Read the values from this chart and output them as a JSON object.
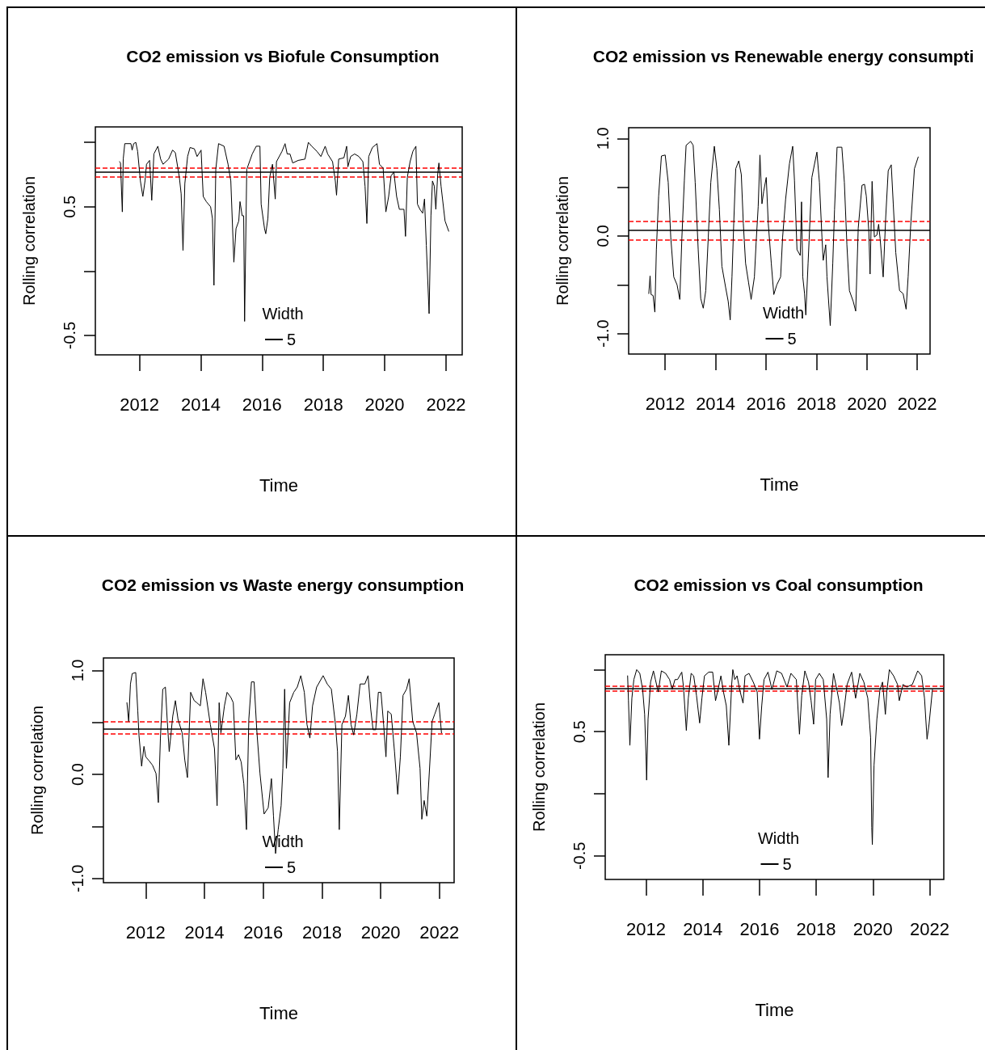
{
  "chart_data": [
    {
      "type": "line",
      "title": "CO2 emission vs Biofule Consumption",
      "xlabel": "Time",
      "ylabel": "Rolling correlation",
      "legend_title": "Width",
      "legend": "bottom",
      "xlim": [
        2010.56,
        2022.53
      ],
      "xticks": [
        2012,
        2014,
        2016,
        2018,
        2020,
        2022
      ],
      "ylim": [
        -0.65,
        1.12
      ],
      "yticks": [
        {
          "value": -0.5,
          "label": "-0.5"
        },
        {
          "value": 0,
          "label": null
        },
        {
          "value": 0.5,
          "label": "0.5"
        },
        {
          "value": 1,
          "label": null
        }
      ],
      "ref_lines": [
        {
          "axis": "y",
          "value": 0.77,
          "color": "#000000",
          "line_style": "solid"
        },
        {
          "axis": "y",
          "value": 0.8,
          "color": "#ff0000",
          "line_style": "dashed"
        },
        {
          "axis": "y",
          "value": 0.73,
          "color": "#ff0000",
          "line_style": "dashed"
        }
      ],
      "series": [
        {
          "name": "5",
          "color": "#000000",
          "x": [
            2011.35,
            2011.38,
            2011.44,
            2011.47,
            2011.52,
            2011.72,
            2011.76,
            2011.81,
            2011.88,
            2011.94,
            2012.03,
            2012.11,
            2012.18,
            2012.23,
            2012.33,
            2012.4,
            2012.47,
            2012.6,
            2012.69,
            2012.77,
            2012.95,
            2013.08,
            2013.17,
            2013.3,
            2013.36,
            2013.42,
            2013.48,
            2013.57,
            2013.65,
            2013.79,
            2013.88,
            2014.01,
            2014.08,
            2014.18,
            2014.32,
            2014.38,
            2014.43,
            2014.49,
            2014.58,
            2014.76,
            2014.89,
            2014.98,
            2015.08,
            2015.15,
            2015.24,
            2015.28,
            2015.35,
            2015.4,
            2015.43,
            2015.5,
            2015.59,
            2015.68,
            2015.81,
            2015.93,
            2015.97,
            2016.08,
            2016.12,
            2016.19,
            2016.25,
            2016.34,
            2016.43,
            2016.47,
            2016.65,
            2016.75,
            2016.82,
            2016.91,
            2017.0,
            2017.18,
            2017.4,
            2017.51,
            2017.62,
            2017.79,
            2017.92,
            2018.06,
            2018.14,
            2018.3,
            2018.39,
            2018.43,
            2018.5,
            2018.67,
            2018.76,
            2018.8,
            2018.89,
            2019.02,
            2019.16,
            2019.29,
            2019.36,
            2019.42,
            2019.48,
            2019.6,
            2019.75,
            2019.83,
            2019.95,
            2020.04,
            2020.13,
            2020.21,
            2020.3,
            2020.39,
            2020.48,
            2020.63,
            2020.68,
            2020.74,
            2020.83,
            2020.92,
            2021.02,
            2021.07,
            2021.15,
            2021.24,
            2021.3,
            2021.36,
            2021.45,
            2021.51,
            2021.56,
            2021.62,
            2021.67,
            2021.73,
            2021.77,
            2021.84,
            2021.97,
            2022.09
          ],
          "values": [
            0.85,
            0.84,
            0.46,
            0.87,
            0.99,
            0.99,
            0.94,
            0.99,
            1.0,
            0.93,
            0.7,
            0.58,
            0.7,
            0.83,
            0.86,
            0.55,
            0.91,
            0.97,
            0.87,
            0.83,
            0.87,
            0.94,
            0.92,
            0.73,
            0.6,
            0.16,
            0.68,
            0.89,
            0.96,
            0.95,
            0.89,
            0.94,
            0.58,
            0.54,
            0.5,
            0.41,
            -0.11,
            0.79,
            0.99,
            0.97,
            0.83,
            0.7,
            0.07,
            0.33,
            0.39,
            0.54,
            0.43,
            0.43,
            -0.39,
            0.79,
            0.85,
            0.91,
            0.97,
            0.97,
            0.52,
            0.33,
            0.29,
            0.41,
            0.73,
            0.83,
            0.56,
            0.85,
            0.93,
            0.99,
            0.91,
            0.91,
            0.84,
            0.86,
            0.87,
            1.0,
            0.97,
            0.93,
            0.89,
            0.97,
            0.91,
            0.85,
            0.7,
            0.59,
            0.87,
            0.88,
            0.97,
            0.81,
            0.89,
            0.91,
            0.89,
            0.85,
            0.66,
            0.37,
            0.89,
            0.96,
            0.99,
            0.83,
            0.8,
            0.46,
            0.58,
            0.74,
            0.77,
            0.58,
            0.48,
            0.48,
            0.27,
            0.73,
            0.85,
            0.93,
            0.97,
            0.52,
            0.48,
            0.45,
            0.56,
            0.2,
            -0.33,
            0.43,
            0.7,
            0.66,
            0.48,
            0.75,
            0.84,
            0.66,
            0.39,
            0.31
          ]
        }
      ]
    },
    {
      "type": "line",
      "title": "CO2 emission vs Renewable energy consumpti",
      "xlabel": "Time",
      "ylabel": "Rolling correlation",
      "legend_title": "Width",
      "legend": "bottom",
      "xlim": [
        2010.55,
        2022.51
      ],
      "xticks": [
        2012,
        2014,
        2016,
        2018,
        2020,
        2022
      ],
      "ylim": [
        -1.21,
        1.11
      ],
      "yticks": [
        {
          "value": -1,
          "label": "-1.0"
        },
        {
          "value": -0.5,
          "label": null
        },
        {
          "value": 0,
          "label": "0.0"
        },
        {
          "value": 0.5,
          "label": null
        },
        {
          "value": 1,
          "label": "1.0"
        }
      ],
      "ref_lines": [
        {
          "axis": "y",
          "value": 0.06,
          "color": "#000000",
          "line_style": "solid"
        },
        {
          "axis": "y",
          "value": 0.15,
          "color": "#ff0000",
          "line_style": "dashed"
        },
        {
          "axis": "y",
          "value": -0.04,
          "color": "#ff0000",
          "line_style": "dashed"
        }
      ],
      "series": [
        {
          "name": "5",
          "color": "#000000",
          "x": [
            2011.35,
            2011.4,
            2011.44,
            2011.52,
            2011.59,
            2011.65,
            2011.74,
            2011.85,
            2012.0,
            2012.12,
            2012.22,
            2012.34,
            2012.47,
            2012.58,
            2012.66,
            2012.76,
            2012.83,
            2013.01,
            2013.11,
            2013.19,
            2013.31,
            2013.41,
            2013.51,
            2013.61,
            2013.71,
            2013.81,
            2013.95,
            2014.05,
            2014.15,
            2014.25,
            2014.4,
            2014.5,
            2014.58,
            2014.65,
            2014.72,
            2014.8,
            2014.92,
            2015.02,
            2015.1,
            2015.19,
            2015.31,
            2015.41,
            2015.54,
            2015.61,
            2015.69,
            2015.76,
            2015.84,
            2015.91,
            2016.01,
            2016.09,
            2016.21,
            2016.31,
            2016.43,
            2016.58,
            2016.66,
            2016.78,
            2016.93,
            2017.06,
            2017.13,
            2017.23,
            2017.36,
            2017.41,
            2017.46,
            2017.53,
            2017.58,
            2017.67,
            2017.82,
            2018.02,
            2018.12,
            2018.22,
            2018.27,
            2018.37,
            2018.42,
            2018.55,
            2018.65,
            2018.72,
            2018.82,
            2019.01,
            2019.11,
            2019.21,
            2019.31,
            2019.46,
            2019.56,
            2019.66,
            2019.81,
            2019.91,
            2019.98,
            2020.08,
            2020.13,
            2020.21,
            2020.3,
            2020.4,
            2020.47,
            2020.53,
            2020.65,
            2020.75,
            2020.85,
            2020.97,
            2021.05,
            2021.15,
            2021.3,
            2021.44,
            2021.56,
            2021.64,
            2021.74,
            2021.89,
            2022.04
          ],
          "values": [
            -0.59,
            -0.41,
            -0.6,
            -0.61,
            -0.78,
            -0.14,
            0.41,
            0.82,
            0.83,
            0.55,
            -0.01,
            -0.42,
            -0.5,
            -0.65,
            -0.03,
            0.57,
            0.93,
            0.97,
            0.93,
            0.55,
            -0.14,
            -0.64,
            -0.74,
            -0.56,
            -0.01,
            0.55,
            0.92,
            0.69,
            0.27,
            -0.31,
            -0.53,
            -0.67,
            -0.86,
            -0.42,
            0.13,
            0.69,
            0.77,
            0.63,
            0.13,
            -0.28,
            -0.48,
            -0.65,
            -0.42,
            -0.06,
            0.3,
            0.83,
            0.33,
            0.46,
            0.6,
            0.13,
            -0.28,
            -0.6,
            -0.5,
            -0.42,
            -0.01,
            0.38,
            0.74,
            0.92,
            0.57,
            -0.14,
            -0.2,
            0.35,
            -0.42,
            -0.59,
            -0.81,
            -0.28,
            0.6,
            0.86,
            0.55,
            -0.01,
            -0.25,
            -0.09,
            -0.42,
            -0.92,
            -0.28,
            0.27,
            0.91,
            0.91,
            0.55,
            -0.09,
            -0.56,
            -0.67,
            -0.77,
            0.08,
            0.52,
            0.53,
            0.41,
            0.05,
            -0.39,
            0.56,
            -0.01,
            0.01,
            0.12,
            -0.03,
            -0.42,
            0.19,
            0.67,
            0.73,
            0.33,
            -0.17,
            -0.56,
            -0.59,
            -0.75,
            -0.42,
            0.1,
            0.69,
            0.81
          ]
        }
      ]
    },
    {
      "type": "line",
      "title": "CO2 emission vs Waste energy consumption",
      "xlabel": "Time",
      "ylabel": "Rolling correlation",
      "legend_title": "Width",
      "legend": "bottom",
      "xlim": [
        2010.56,
        2022.5
      ],
      "xticks": [
        2012,
        2014,
        2016,
        2018,
        2020,
        2022
      ],
      "ylim": [
        -1.04,
        1.12
      ],
      "yticks": [
        {
          "value": -1,
          "label": "-1.0"
        },
        {
          "value": -0.5,
          "label": null
        },
        {
          "value": 0,
          "label": "0.0"
        },
        {
          "value": 0.5,
          "label": null
        },
        {
          "value": 1,
          "label": "1.0"
        }
      ],
      "ref_lines": [
        {
          "axis": "y",
          "value": 0.44,
          "color": "#000000",
          "line_style": "solid"
        },
        {
          "axis": "y",
          "value": 0.51,
          "color": "#ff0000",
          "line_style": "dashed"
        },
        {
          "axis": "y",
          "value": 0.39,
          "color": "#ff0000",
          "line_style": "dashed"
        }
      ],
      "series": [
        {
          "name": "5",
          "color": "#000000",
          "x": [
            2011.36,
            2011.42,
            2011.48,
            2011.54,
            2011.66,
            2011.73,
            2011.77,
            2011.86,
            2011.94,
            2012.0,
            2012.12,
            2012.23,
            2012.35,
            2012.43,
            2012.5,
            2012.58,
            2012.67,
            2012.73,
            2012.8,
            2012.92,
            2013.01,
            2013.1,
            2013.24,
            2013.33,
            2013.42,
            2013.53,
            2013.65,
            2013.74,
            2013.86,
            2013.95,
            2014.04,
            2014.2,
            2014.34,
            2014.43,
            2014.5,
            2014.56,
            2014.68,
            2014.77,
            2014.9,
            2014.98,
            2015.07,
            2015.16,
            2015.25,
            2015.34,
            2015.43,
            2015.51,
            2015.6,
            2015.69,
            2015.78,
            2015.89,
            2016.03,
            2016.17,
            2016.28,
            2016.35,
            2016.42,
            2016.51,
            2016.61,
            2016.67,
            2016.73,
            2016.79,
            2016.9,
            2017.04,
            2017.16,
            2017.28,
            2017.4,
            2017.49,
            2017.59,
            2017.68,
            2017.82,
            2018.04,
            2018.18,
            2018.32,
            2018.46,
            2018.53,
            2018.59,
            2018.68,
            2018.8,
            2018.9,
            2018.99,
            2019.08,
            2019.19,
            2019.3,
            2019.46,
            2019.57,
            2019.66,
            2019.74,
            2019.83,
            2019.92,
            2020.01,
            2020.1,
            2020.18,
            2020.24,
            2020.36,
            2020.47,
            2020.58,
            2020.67,
            2020.76,
            2020.88,
            2020.97,
            2021.09,
            2021.22,
            2021.34,
            2021.4,
            2021.48,
            2021.57,
            2021.66,
            2021.75,
            2021.84,
            2021.98,
            2022.07
          ],
          "values": [
            0.69,
            0.51,
            0.87,
            0.97,
            0.98,
            0.61,
            0.38,
            0.08,
            0.27,
            0.17,
            0.13,
            0.09,
            0.01,
            -0.27,
            0.35,
            0.82,
            0.84,
            0.53,
            0.22,
            0.56,
            0.71,
            0.53,
            0.4,
            0.14,
            -0.03,
            0.79,
            0.71,
            0.69,
            0.66,
            0.92,
            0.79,
            0.48,
            0.25,
            -0.3,
            0.69,
            0.4,
            0.66,
            0.79,
            0.74,
            0.69,
            0.14,
            0.19,
            0.12,
            -0.09,
            -0.53,
            0.53,
            0.89,
            0.89,
            0.43,
            0.01,
            -0.38,
            -0.32,
            -0.04,
            -0.4,
            -0.76,
            -0.53,
            -0.3,
            0.06,
            0.82,
            0.06,
            0.69,
            0.79,
            0.84,
            0.95,
            0.79,
            0.48,
            0.35,
            0.66,
            0.84,
            0.95,
            0.87,
            0.82,
            0.48,
            0.22,
            -0.53,
            0.48,
            0.56,
            0.76,
            0.48,
            0.38,
            0.58,
            0.87,
            0.87,
            0.95,
            0.63,
            0.43,
            0.43,
            0.79,
            0.79,
            0.48,
            0.17,
            0.61,
            0.58,
            0.22,
            -0.19,
            0.17,
            0.76,
            0.82,
            0.92,
            0.51,
            0.4,
            0.06,
            -0.43,
            -0.25,
            -0.4,
            0.04,
            0.51,
            0.58,
            0.69,
            0.4
          ]
        }
      ]
    },
    {
      "type": "line",
      "title": "CO2 emission vs Coal consumption",
      "xlabel": "Time",
      "ylabel": "Rolling correlation",
      "legend_title": "Width",
      "legend": "bottom",
      "xlim": [
        2010.56,
        2022.5
      ],
      "xticks": [
        2012,
        2014,
        2016,
        2018,
        2020,
        2022
      ],
      "ylim": [
        -0.69,
        1.12
      ],
      "yticks": [
        {
          "value": -0.5,
          "label": "-0.5"
        },
        {
          "value": 0,
          "label": null
        },
        {
          "value": 0.5,
          "label": "0.5"
        },
        {
          "value": 1,
          "label": null
        }
      ],
      "ref_lines": [
        {
          "axis": "y",
          "value": 0.85,
          "color": "#000000",
          "line_style": "solid"
        },
        {
          "axis": "y",
          "value": 0.87,
          "color": "#ff0000",
          "line_style": "dashed"
        },
        {
          "axis": "y",
          "value": 0.83,
          "color": "#ff0000",
          "line_style": "dashed"
        }
      ],
      "series": [
        {
          "name": "5",
          "color": "#000000",
          "x": [
            2011.35,
            2011.38,
            2011.43,
            2011.5,
            2011.57,
            2011.67,
            2011.78,
            2011.88,
            2011.95,
            2012.0,
            2012.02,
            2012.07,
            2012.16,
            2012.26,
            2012.33,
            2012.43,
            2012.54,
            2012.69,
            2012.83,
            2012.92,
            2013.02,
            2013.11,
            2013.26,
            2013.32,
            2013.42,
            2013.49,
            2013.59,
            2013.68,
            2013.78,
            2013.89,
            2013.97,
            2014.06,
            2014.21,
            2014.35,
            2014.45,
            2014.54,
            2014.64,
            2014.73,
            2014.83,
            2014.92,
            2015.02,
            2015.06,
            2015.13,
            2015.21,
            2015.3,
            2015.42,
            2015.49,
            2015.63,
            2015.78,
            2015.92,
            2016.0,
            2016.08,
            2016.16,
            2016.3,
            2016.44,
            2016.61,
            2016.78,
            2016.97,
            2017.11,
            2017.3,
            2017.41,
            2017.49,
            2017.6,
            2017.73,
            2017.82,
            2017.91,
            2017.98,
            2018.11,
            2018.25,
            2018.37,
            2018.42,
            2018.49,
            2018.61,
            2018.73,
            2018.82,
            2018.9,
            2018.99,
            2019.09,
            2019.25,
            2019.39,
            2019.54,
            2019.68,
            2019.82,
            2019.92,
            2019.96,
            2019.98,
            2020.04,
            2020.14,
            2020.25,
            2020.34,
            2020.44,
            2020.49,
            2020.58,
            2020.73,
            2020.87,
            2020.93,
            2021.06,
            2021.2,
            2021.39,
            2021.58,
            2021.72,
            2021.82,
            2021.91,
            2021.98,
            2022.1
          ],
          "values": [
            0.95,
            0.75,
            0.39,
            0.77,
            0.92,
            1.0,
            0.97,
            0.84,
            0.64,
            0.3,
            0.11,
            0.6,
            0.9,
            0.99,
            0.92,
            0.82,
            0.99,
            0.97,
            0.92,
            0.84,
            0.92,
            0.92,
            0.98,
            0.86,
            0.51,
            0.77,
            0.97,
            0.95,
            0.79,
            0.57,
            0.77,
            0.95,
            0.98,
            0.98,
            0.75,
            0.84,
            0.95,
            0.82,
            0.71,
            0.39,
            0.88,
            1.0,
            0.92,
            0.95,
            0.84,
            0.73,
            0.95,
            0.97,
            0.9,
            0.82,
            0.44,
            0.71,
            0.92,
            0.98,
            0.84,
            0.99,
            0.97,
            0.86,
            0.97,
            0.92,
            0.48,
            0.79,
            0.99,
            0.9,
            0.75,
            0.56,
            0.92,
            0.97,
            0.92,
            0.6,
            0.13,
            0.64,
            0.97,
            0.84,
            0.73,
            0.55,
            0.69,
            0.88,
            0.98,
            0.77,
            0.97,
            0.9,
            0.77,
            0.45,
            -0.27,
            -0.41,
            0.23,
            0.6,
            0.84,
            0.9,
            0.64,
            0.82,
            1.0,
            0.95,
            0.88,
            0.75,
            0.88,
            0.86,
            0.88,
            0.99,
            0.95,
            0.77,
            0.44,
            0.56,
            0.84
          ]
        }
      ]
    }
  ]
}
